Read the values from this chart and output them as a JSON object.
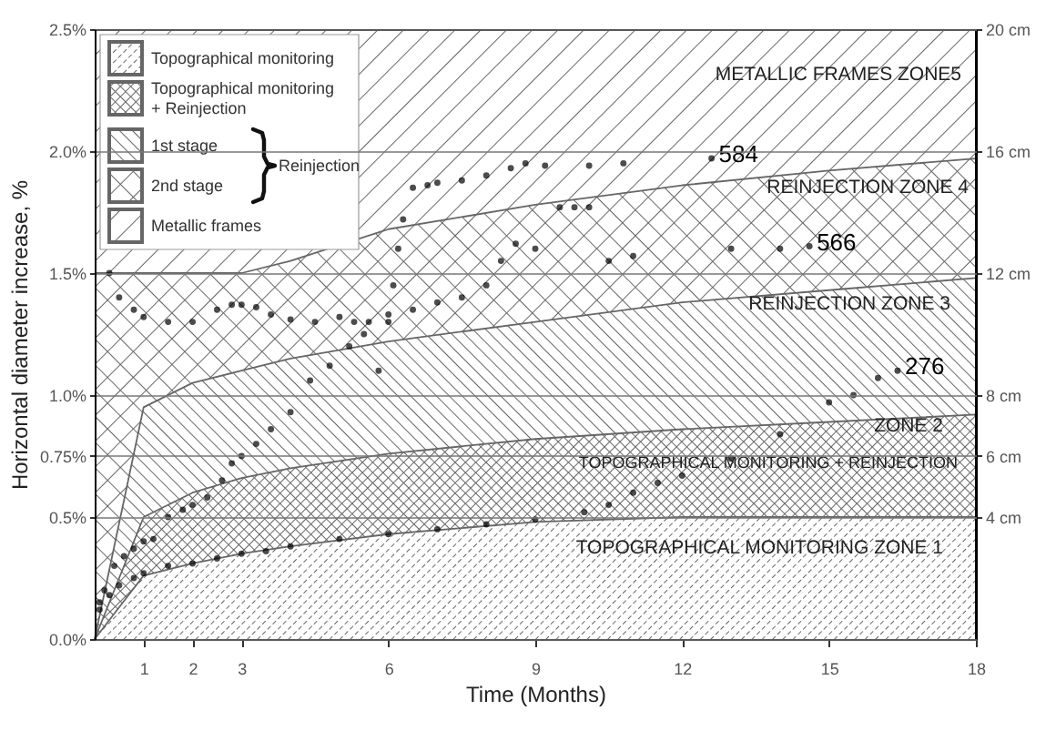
{
  "chart_data": {
    "type": "scatter",
    "xlabel": "Time (Months)",
    "ylabel": "Horizontal diameter increase, %",
    "xlim": [
      0,
      18
    ],
    "xticks": [
      1,
      2,
      3,
      6,
      9,
      12,
      15,
      18
    ],
    "ylim": [
      0,
      2.5
    ],
    "yticks": [
      {
        "value": 0,
        "label": "0.0%"
      },
      {
        "value": 0.5,
        "label": "0.5%"
      },
      {
        "value": 0.75,
        "label": "0.75%"
      },
      {
        "value": 1,
        "label": "1.0%"
      },
      {
        "value": 1.5,
        "label": "1.5%"
      },
      {
        "value": 2,
        "label": "2.0%"
      },
      {
        "value": 2.5,
        "label": "2.5%"
      }
    ],
    "y2lim": [
      0,
      20
    ],
    "y2ticks": [
      {
        "value": 4,
        "label": "4 cm"
      },
      {
        "value": 6,
        "label": "6 cm"
      },
      {
        "value": 8,
        "label": "8 cm"
      },
      {
        "value": 12,
        "label": "12 cm"
      },
      {
        "value": 16,
        "label": "16 cm"
      },
      {
        "value": 20,
        "label": "20 cm"
      }
    ],
    "grid": "y",
    "legend": "top left",
    "x": [
      0,
      1,
      2,
      3,
      4,
      6,
      9,
      12,
      15,
      18
    ],
    "series": [
      {
        "name": "Topographical monitoring",
        "type": "area",
        "color": "#666666",
        "values": [
          0,
          0.26,
          0.31,
          0.35,
          0.38,
          0.43,
          0.48,
          0.5,
          0.5,
          0.5
        ]
      },
      {
        "name": "Topographical monitoring + Reinjection",
        "type": "area",
        "color": "#666666",
        "values": [
          0,
          0.5,
          0.6,
          0.66,
          0.7,
          0.76,
          0.82,
          0.86,
          0.89,
          0.92
        ]
      },
      {
        "name": "1st stage",
        "type": "area",
        "color": "#666666",
        "values": [
          0,
          0.95,
          1.05,
          1.1,
          1.15,
          1.22,
          1.3,
          1.38,
          1.43,
          1.48
        ]
      },
      {
        "name": "2nd stage",
        "type": "area",
        "color": "#666666",
        "values": [
          1.5,
          1.5,
          1.5,
          1.5,
          1.55,
          1.68,
          1.78,
          1.86,
          1.92,
          1.97
        ]
      },
      {
        "name": "584",
        "color": "#000000",
        "marker": "circle",
        "x": [
          0.1,
          0.2,
          0.4,
          0.6,
          0.8,
          1,
          1.2,
          1.5,
          1.8,
          2,
          2.3,
          2.6,
          2.8,
          3,
          3.3,
          3.6,
          4,
          4.4,
          4.8,
          5.2,
          5.5,
          5.8,
          6,
          6.1,
          6.2,
          6.3,
          6.5,
          6.8,
          7,
          7.5,
          8,
          8.5,
          8.8,
          9.2,
          10.1,
          10.8,
          12.6
        ],
        "values": [
          0.15,
          0.2,
          0.3,
          0.34,
          0.37,
          0.4,
          0.41,
          0.5,
          0.53,
          0.55,
          0.58,
          0.65,
          0.72,
          0.75,
          0.8,
          0.86,
          0.93,
          1.06,
          1.12,
          1.2,
          1.25,
          1.1,
          1.3,
          1.45,
          1.6,
          1.72,
          1.85,
          1.86,
          1.87,
          1.88,
          1.9,
          1.93,
          1.95,
          1.94,
          1.94,
          1.95,
          1.97
        ]
      },
      {
        "name": "566",
        "color": "#000000",
        "marker": "circle",
        "x": [
          0.3,
          0.5,
          0.8,
          1,
          1.5,
          2,
          2.5,
          2.8,
          3,
          3.3,
          3.6,
          4,
          4.5,
          5,
          5.3,
          5.6,
          6,
          6.5,
          7,
          7.5,
          8,
          8.3,
          8.6,
          9,
          9.5,
          9.8,
          10.1,
          10.5,
          11,
          13,
          14,
          14.6
        ],
        "values": [
          1.5,
          1.4,
          1.35,
          1.32,
          1.3,
          1.3,
          1.35,
          1.37,
          1.37,
          1.36,
          1.33,
          1.31,
          1.3,
          1.32,
          1.3,
          1.3,
          1.33,
          1.35,
          1.38,
          1.4,
          1.45,
          1.55,
          1.62,
          1.6,
          1.77,
          1.77,
          1.77,
          1.55,
          1.57,
          1.6,
          1.6,
          1.61
        ]
      },
      {
        "name": "276",
        "color": "#000000",
        "marker": "circle",
        "x": [
          0.1,
          0.3,
          0.5,
          0.8,
          1,
          1.5,
          2,
          2.5,
          3,
          3.5,
          4,
          5,
          6,
          7,
          8,
          9,
          10,
          10.5,
          11,
          11.5,
          12,
          13,
          14,
          15,
          15.5,
          16,
          16.4
        ],
        "values": [
          0.12,
          0.18,
          0.22,
          0.25,
          0.27,
          0.3,
          0.31,
          0.33,
          0.35,
          0.36,
          0.38,
          0.41,
          0.43,
          0.45,
          0.47,
          0.49,
          0.52,
          0.55,
          0.6,
          0.64,
          0.67,
          0.74,
          0.84,
          0.97,
          1.0,
          1.07,
          1.1
        ]
      }
    ],
    "annotations": [
      "Metallic frames",
      "Reinjection",
      "METALLIC FRAMES ZONE5",
      "REINJECTION ZONE 4",
      "REINJECTION ZONE 3",
      "ZONE 2",
      "TOPOGRAPHICAL MONITORING + REINJECTION",
      "TOPOGRAPHICAL MONITORING ZONE 1"
    ]
  }
}
